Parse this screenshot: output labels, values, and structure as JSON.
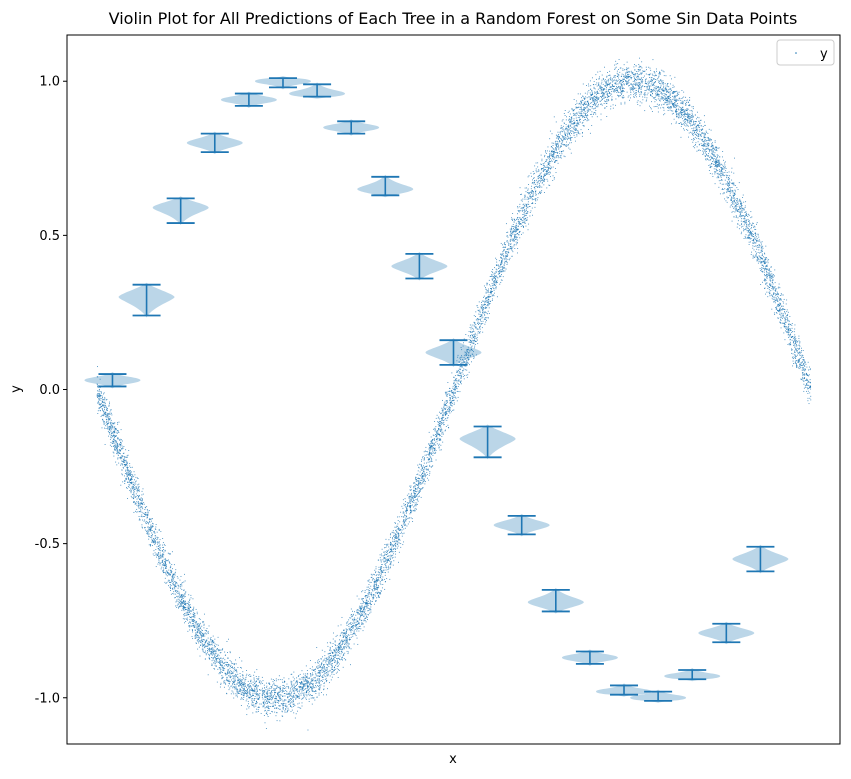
{
  "chart_data": {
    "type": "violin",
    "title": "Violin Plot for All Predictions of Each Tree in a Random Forest on Some Sin Data Points",
    "xlabel": "x",
    "ylabel": "y",
    "ylim": [
      -1.15,
      1.15
    ],
    "xlim": [
      -3.4,
      3.4
    ],
    "yticks": [
      1.0,
      0.5,
      0.0,
      -0.5,
      -1.0
    ],
    "ytick_labels": [
      "1.0",
      "0.5",
      "0.0",
      "-0.5",
      "-1.0"
    ],
    "xticks_shown": false,
    "legend": {
      "position": "top-right",
      "entries": [
        "y"
      ]
    },
    "grid": false,
    "scatter": {
      "name": "y",
      "function": "sin",
      "x_range": [
        -3.14,
        3.14
      ],
      "noise_sd": 0.03,
      "color": "#1f77b4"
    },
    "violins": [
      {
        "x": -3.0,
        "center": 0.03,
        "min": 0.01,
        "max": 0.05
      },
      {
        "x": -2.7,
        "center": 0.3,
        "min": 0.24,
        "max": 0.34
      },
      {
        "x": -2.4,
        "center": 0.59,
        "min": 0.54,
        "max": 0.62
      },
      {
        "x": -2.1,
        "center": 0.8,
        "min": 0.77,
        "max": 0.83
      },
      {
        "x": -1.8,
        "center": 0.94,
        "min": 0.92,
        "max": 0.96
      },
      {
        "x": -1.5,
        "center": 1.0,
        "min": 0.98,
        "max": 1.01
      },
      {
        "x": -1.2,
        "center": 0.96,
        "min": 0.95,
        "max": 0.99
      },
      {
        "x": -0.9,
        "center": 0.85,
        "min": 0.83,
        "max": 0.87
      },
      {
        "x": -0.6,
        "center": 0.65,
        "min": 0.63,
        "max": 0.69
      },
      {
        "x": -0.3,
        "center": 0.4,
        "min": 0.36,
        "max": 0.44
      },
      {
        "x": 0.0,
        "center": 0.12,
        "min": 0.08,
        "max": 0.16
      },
      {
        "x": 0.3,
        "center": -0.16,
        "min": -0.22,
        "max": -0.12
      },
      {
        "x": 0.6,
        "center": -0.44,
        "min": -0.47,
        "max": -0.41
      },
      {
        "x": 0.9,
        "center": -0.69,
        "min": -0.72,
        "max": -0.65
      },
      {
        "x": 1.2,
        "center": -0.87,
        "min": -0.89,
        "max": -0.85
      },
      {
        "x": 1.5,
        "center": -0.98,
        "min": -0.99,
        "max": -0.96
      },
      {
        "x": 1.8,
        "center": -1.0,
        "min": -1.01,
        "max": -0.98
      },
      {
        "x": 2.1,
        "center": -0.93,
        "min": -0.94,
        "max": -0.91
      },
      {
        "x": 2.4,
        "center": -0.79,
        "min": -0.82,
        "max": -0.76
      },
      {
        "x": 2.7,
        "center": -0.55,
        "min": -0.59,
        "max": -0.51
      }
    ]
  }
}
